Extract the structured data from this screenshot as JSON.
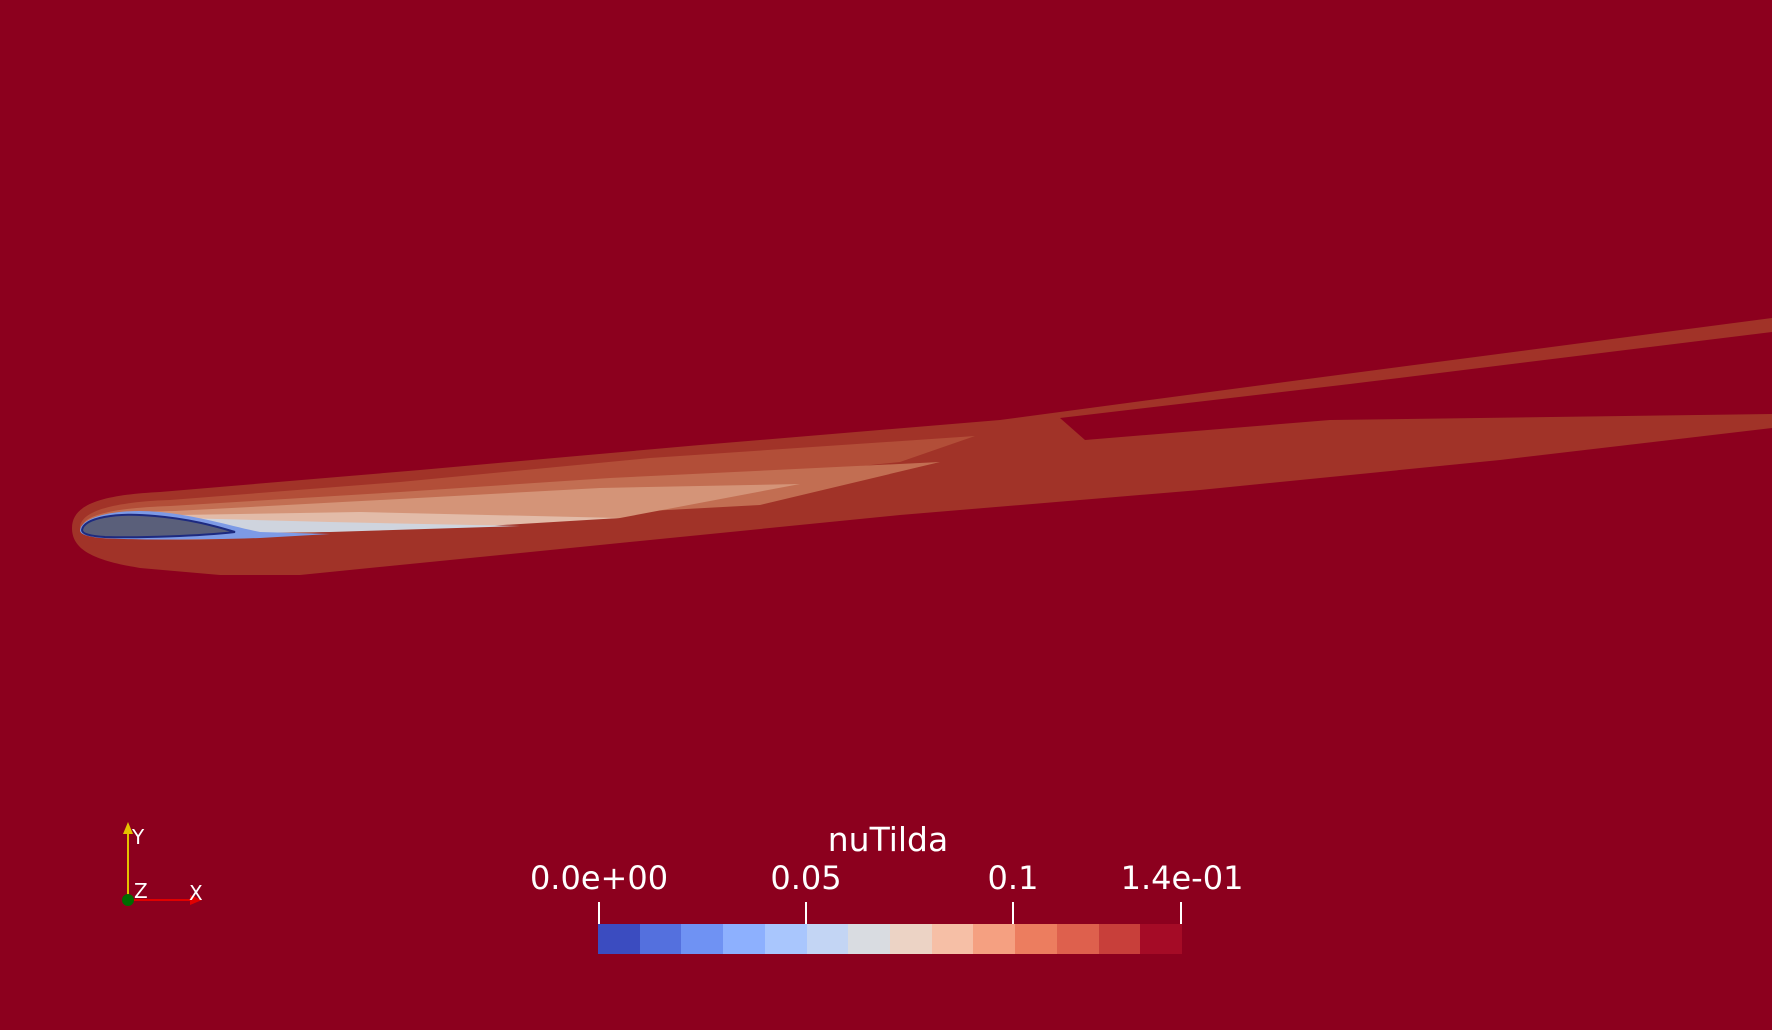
{
  "scalar_bar": {
    "title": "nuTilda",
    "tick_labels": [
      "0.0e+00",
      "0.05",
      "0.1",
      "1.4e-01"
    ],
    "colors": [
      "#3b4cc0",
      "#5470de",
      "#6f92f3",
      "#8db0fe",
      "#a9c6fd",
      "#c3d5f4",
      "#d9dce1",
      "#ecd3c5",
      "#f6bfa6",
      "#f5a081",
      "#ec7d5f",
      "#de604d",
      "#c83f3a",
      "#a50b26"
    ]
  },
  "orientation_axes": {
    "y_label": "Y",
    "z_label": "Z",
    "x_label": "X"
  },
  "colors": {
    "background": "#8c001e",
    "airfoil": "#5a5f7a"
  }
}
